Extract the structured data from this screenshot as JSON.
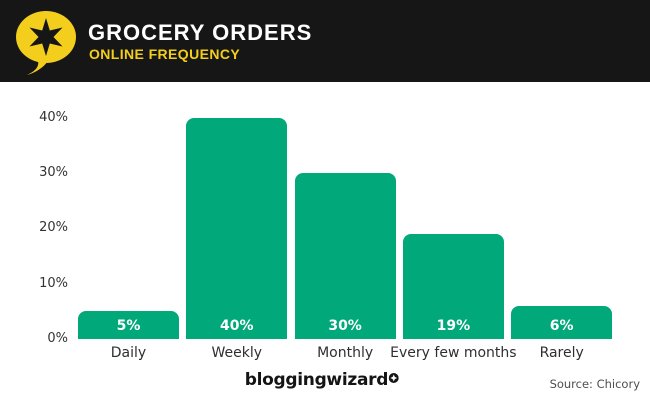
{
  "header": {
    "title": "GROCERY ORDERS",
    "subtitle": "ONLINE FREQUENCY",
    "logo_icon": "speech-bubble-star-icon",
    "colors": {
      "background": "#161616",
      "title": "#ffffff",
      "accent_yellow": "#F3CE1C"
    }
  },
  "chart_data": {
    "type": "bar",
    "title": "Grocery Orders — Online Frequency",
    "categories": [
      "Daily",
      "Weekly",
      "Monthly",
      "Every few months",
      "Rarely"
    ],
    "values": [
      5,
      40,
      30,
      19,
      6
    ],
    "data_labels": [
      "5%",
      "40%",
      "30%",
      "19%",
      "6%"
    ],
    "ytick_values": [
      0,
      10,
      20,
      30,
      40
    ],
    "ytick_labels": [
      "0%",
      "10%",
      "20%",
      "30%",
      "40%"
    ],
    "ylim": [
      0,
      40
    ],
    "xlabel": "",
    "ylabel": "",
    "grid": false,
    "legend": false,
    "bar_color": "#00A87A",
    "data_label_color": "#ffffff"
  },
  "footer": {
    "brand": "bloggingwizard",
    "brand_badge_icon": "sparkle-badge-icon",
    "source": "Source: Chicory"
  }
}
